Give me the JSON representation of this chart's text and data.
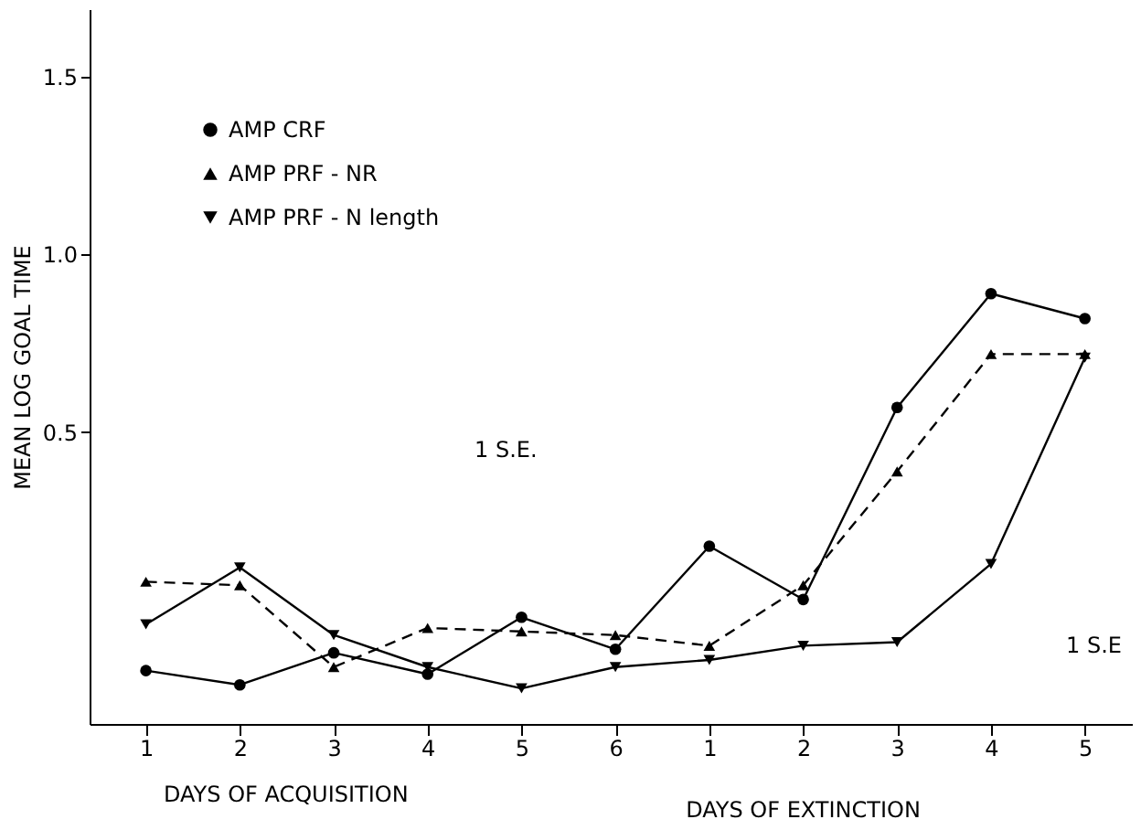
{
  "chart_data": {
    "type": "line",
    "categories": [
      "1",
      "2",
      "3",
      "4",
      "5",
      "6",
      "1",
      "2",
      "3",
      "4",
      "5"
    ],
    "series": [
      {
        "name": "AMP  CRF",
        "color": "#000000",
        "marker": "circle",
        "line_style": "solid",
        "values": [
          -0.17,
          -0.21,
          -0.12,
          -0.18,
          -0.02,
          -0.11,
          0.18,
          0.03,
          0.57,
          0.89,
          0.82
        ]
      },
      {
        "name": "AMP  PRF - NR",
        "color": "#000000",
        "marker": "triangle",
        "line_style": "dashed",
        "values": [
          0.08,
          0.07,
          -0.16,
          -0.05,
          -0.06,
          -0.07,
          -0.1,
          0.07,
          0.39,
          0.72,
          0.72
        ]
      },
      {
        "name": "AMP  PRF - N  length",
        "color": "#000000",
        "marker": "triangle-down",
        "line_style": "solid",
        "values": [
          -0.04,
          0.12,
          -0.07,
          -0.16,
          -0.22,
          -0.16,
          -0.14,
          -0.1,
          -0.09,
          0.13,
          0.71
        ]
      }
    ],
    "ylabel": "MEAN LOG GOAL TIME",
    "xlabel": "DAYS OF ACQUISITION",
    "ylim": [
      -0.32,
      1.69
    ],
    "yticks": [
      {
        "value": 0.5,
        "label": "0.5"
      },
      {
        "value": 1.0,
        "label": "1.0"
      },
      {
        "value": 1.5,
        "label": "1.5"
      }
    ],
    "annotations": [
      "1 S.E.",
      "1 S.E",
      "DAYS OF EXTINCTION"
    ],
    "legend": "top left",
    "grid": false
  }
}
